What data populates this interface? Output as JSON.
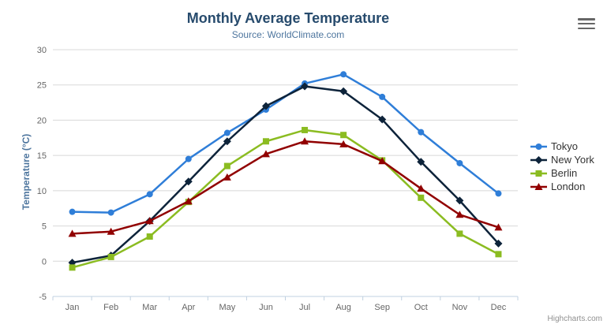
{
  "chart_data": {
    "type": "line",
    "title": "Monthly Average Temperature",
    "subtitle": "Source: WorldClimate.com",
    "categories": [
      "Jan",
      "Feb",
      "Mar",
      "Apr",
      "May",
      "Jun",
      "Jul",
      "Aug",
      "Sep",
      "Oct",
      "Nov",
      "Dec"
    ],
    "xlabel": "",
    "ylabel": "Temperature (°C)",
    "ylim": [
      -5,
      30
    ],
    "yticks": [
      -5,
      0,
      5,
      10,
      15,
      20,
      25,
      30
    ],
    "grid": true,
    "legend_position": "right",
    "series": [
      {
        "name": "Tokyo",
        "color": "#2f7ed8",
        "marker": "circle",
        "values": [
          7.0,
          6.9,
          9.5,
          14.5,
          18.2,
          21.5,
          25.2,
          26.5,
          23.3,
          18.3,
          13.9,
          9.6
        ]
      },
      {
        "name": "New York",
        "color": "#0d233a",
        "marker": "diamond",
        "values": [
          -0.2,
          0.8,
          5.7,
          11.3,
          17.0,
          22.0,
          24.8,
          24.1,
          20.1,
          14.1,
          8.6,
          2.5
        ]
      },
      {
        "name": "Berlin",
        "color": "#8bbc21",
        "marker": "square",
        "values": [
          -0.9,
          0.6,
          3.5,
          8.4,
          13.5,
          17.0,
          18.6,
          17.9,
          14.3,
          9.0,
          3.9,
          1.0
        ]
      },
      {
        "name": "London",
        "color": "#910000",
        "marker": "triangle",
        "values": [
          3.9,
          4.2,
          5.7,
          8.5,
          11.9,
          15.2,
          17.0,
          16.6,
          14.2,
          10.3,
          6.6,
          4.8
        ]
      }
    ],
    "credits": "Highcharts.com"
  },
  "colors": {
    "title": "#274b6d",
    "subtitle": "#4d759e",
    "axis_label": "#666666",
    "gridline": "#d8d8d8",
    "axis_line": "#c0d0e0",
    "legend_text": "#333333",
    "credits": "#909090",
    "menu_icon": "#666666",
    "background": "#ffffff"
  }
}
